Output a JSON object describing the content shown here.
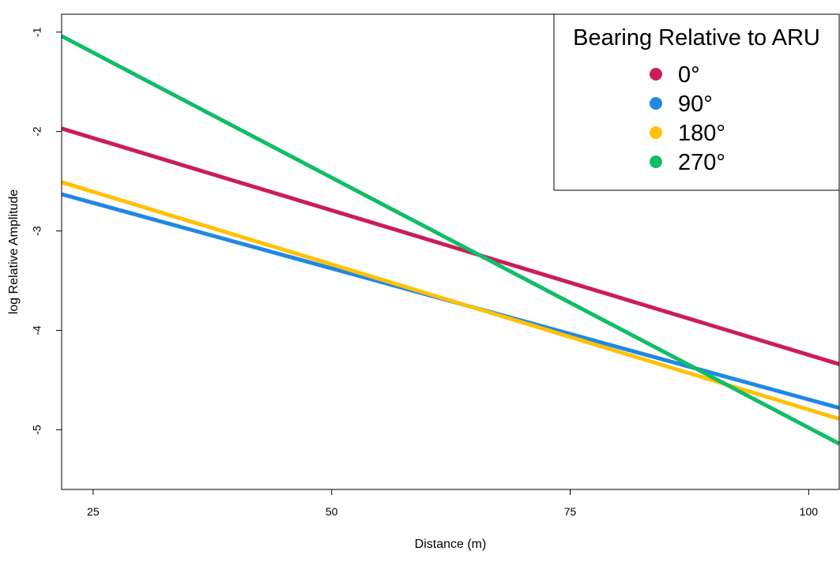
{
  "chart_data": {
    "type": "line",
    "title": "",
    "xlabel": "Distance (m)",
    "ylabel": "log Relative Amplitude",
    "xlim": [
      21.7,
      103.2
    ],
    "ylim": [
      -5.6,
      -0.82
    ],
    "x_ticks": [
      25,
      50,
      75,
      100
    ],
    "y_ticks": [
      -1,
      -2,
      -3,
      -4,
      -5
    ],
    "x_tick_labels": [
      "25",
      "50",
      "75",
      "100"
    ],
    "y_tick_labels": [
      "-1",
      "-2",
      "-3",
      "-4",
      "-5"
    ],
    "grid": false,
    "legend": {
      "title": "Bearing Relative to ARU",
      "placement": "top-right"
    },
    "series": [
      {
        "name": "0°",
        "color": "#CC1C5A",
        "x": [
          21.7,
          103.2
        ],
        "y": [
          -1.97,
          -4.34
        ]
      },
      {
        "name": "90°",
        "color": "#1E88E5",
        "x": [
          21.7,
          103.2
        ],
        "y": [
          -2.63,
          -4.78
        ]
      },
      {
        "name": "180°",
        "color": "#FFC107",
        "x": [
          21.7,
          103.2
        ],
        "y": [
          -2.51,
          -4.89
        ]
      },
      {
        "name": "270°",
        "color": "#10BD66",
        "x": [
          21.7,
          103.2
        ],
        "y": [
          -1.04,
          -5.14
        ]
      }
    ]
  }
}
